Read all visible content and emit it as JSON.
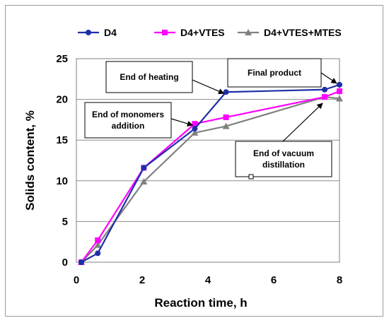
{
  "chart_data": {
    "type": "line",
    "xlabel": "Reaction time, h",
    "ylabel": "Solids content, %",
    "xlim": [
      0,
      8
    ],
    "ylim": [
      0,
      25
    ],
    "xticks": [
      "0",
      "2",
      "4",
      "6",
      "8"
    ],
    "yticks": [
      "0",
      "5",
      "10",
      "15",
      "20",
      "25"
    ],
    "grid": "horizontal",
    "legend_position": "top",
    "series": [
      {
        "name": "D4",
        "color": "#1f2fa8",
        "marker": "circle",
        "x": [
          0.15,
          0.65,
          2.05,
          3.6,
          4.55,
          7.55,
          8.0
        ],
        "y": [
          0.0,
          1.1,
          11.6,
          16.4,
          20.9,
          21.2,
          21.8
        ]
      },
      {
        "name": "D4+VTES",
        "color": "#ff00ff",
        "marker": "square",
        "x": [
          0.15,
          0.65,
          2.05,
          3.6,
          4.55,
          7.55,
          8.0
        ],
        "y": [
          0.0,
          2.7,
          11.6,
          17.0,
          17.8,
          20.3,
          21.0
        ]
      },
      {
        "name": "D4+VTES+MTES",
        "color": "#808080",
        "marker": "triangle",
        "x": [
          0.15,
          0.65,
          2.05,
          3.6,
          4.55,
          7.55,
          8.0
        ],
        "y": [
          0.0,
          2.1,
          9.9,
          15.9,
          16.7,
          20.3,
          20.1
        ]
      }
    ],
    "annotations": [
      {
        "lines": [
          "End of heating"
        ],
        "target": [
          4.55,
          20.9
        ]
      },
      {
        "lines": [
          "Final product"
        ],
        "target": [
          8.0,
          21.8
        ]
      },
      {
        "lines": [
          "End of monomers",
          "addition"
        ],
        "target": [
          3.6,
          17.0
        ]
      },
      {
        "lines": [
          "End of vacuum",
          "distillation"
        ],
        "target": [
          7.55,
          19.7
        ]
      }
    ]
  }
}
